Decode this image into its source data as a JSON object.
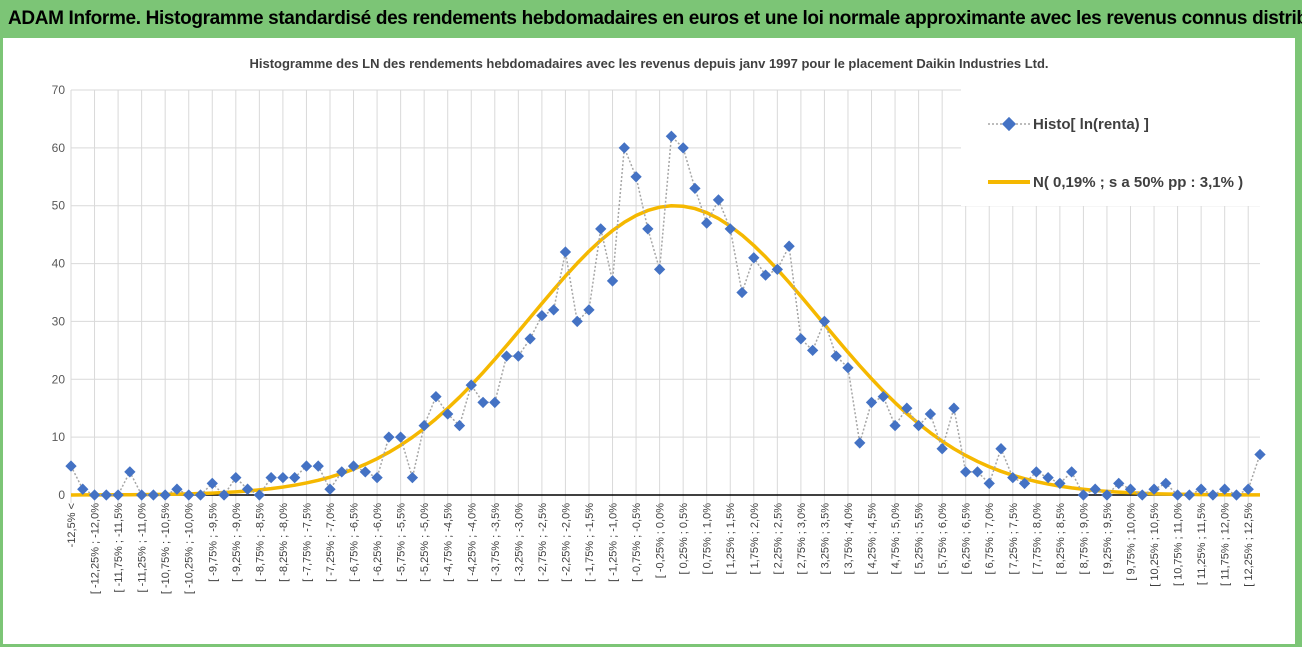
{
  "header": {
    "title": "ADAM Informe. Histogramme standardisé des rendements hebdomadaires en euros et une loi normale approximante avec les revenus connus distribués"
  },
  "colors": {
    "background": "#7cc576",
    "series_histo": "#4472c4",
    "series_normal": "#f5b800",
    "grid": "#d9d9d9",
    "connector": "#a6a6a6"
  },
  "chart_data": {
    "type": "line",
    "title": "Histogramme des LN des rendements hebdomadaires avec les revenus depuis janv 1997 pour le placement Daikin Industries Ltd.",
    "xlabel": "",
    "ylabel": "",
    "ylim": [
      0,
      70
    ],
    "yticks": [
      0,
      10,
      20,
      30,
      40,
      50,
      60,
      70
    ],
    "legend_position": "top-right",
    "categories": [
      "-12,5% <",
      "[ -12,5% ; -12,25% [",
      "[ -12,25% ; -12,0% [",
      "[ -12,0% ; -11,75% [",
      "[ -11,75% ; -11,5% [",
      "[ -11,5% ; -11,25% [",
      "[ -11,25% ; -11,0% [",
      "[ -11,0% ; -10,75% [",
      "[ -10,75% ; -10,5% [",
      "[ -10,5% ; -10,25% [",
      "[ -10,25% ; -10,0% [",
      "[ -10,0% ; -9,75% [",
      "[ -9,75% ; -9,5% [",
      "[ -9,5% ; -9,25% [",
      "[ -9,25% ; -9,0% [",
      "[ -9,0% ; -8,75% [",
      "[ -8,75% ; -8,5% [",
      "[ -8,5% ; -8,25% [",
      "[ -8,25% ; -8,0% [",
      "[ -8,0% ; -7,75% [",
      "[ -7,75% ; -7,5% [",
      "[ -7,5% ; -7,25% [",
      "[ -7,25% ; -7,0% [",
      "[ -7,0% ; -6,75% [",
      "[ -6,75% ; -6,5% [",
      "[ -6,5% ; -6,25% [",
      "[ -6,25% ; -6,0% [",
      "[ -6,0% ; -5,75% [",
      "[ -5,75% ; -5,5% [",
      "[ -5,5% ; -5,25% [",
      "[ -5,25% ; -5,0% [",
      "[ -5,0% ; -4,75% [",
      "[ -4,75% ; -4,5% [",
      "[ -4,5% ; -4,25% [",
      "[ -4,25% ; -4,0% [",
      "[ -4,0% ; -3,75% [",
      "[ -3,75% ; -3,5% [",
      "[ -3,5% ; -3,25% [",
      "[ -3,25% ; -3,0% [",
      "[ -3,0% ; -2,75% [",
      "[ -2,75% ; -2,5% [",
      "[ -2,5% ; -2,25% [",
      "[ -2,25% ; -2,0% [",
      "[ -2,0% ; -1,75% [",
      "[ -1,75% ; -1,5% [",
      "[ -1,5% ; -1,25% [",
      "[ -1,25% ; -1,0% [",
      "[ -1,0% ; -0,75% [",
      "[ -0,75% ; -0,5% [",
      "[ -0,5% ; -0,25% [",
      "[ -0,25% ; 0,0% [",
      "[ 0,0% ; 0,25% [",
      "[ 0,25% ; 0,5% [",
      "[ 0,5% ; 0,75% [",
      "[ 0,75% ; 1,0% [",
      "[ 1,0% ; 1,25% [",
      "[ 1,25% ; 1,5% [",
      "[ 1,5% ; 1,75% [",
      "[ 1,75% ; 2,0% [",
      "[ 2,0% ; 2,25% [",
      "[ 2,25% ; 2,5% [",
      "[ 2,5% ; 2,75% [",
      "[ 2,75% ; 3,0% [",
      "[ 3,0% ; 3,25% [",
      "[ 3,25% ; 3,5% [",
      "[ 3,5% ; 3,75% [",
      "[ 3,75% ; 4,0% [",
      "[ 4,0% ; 4,25% [",
      "[ 4,25% ; 4,5% [",
      "[ 4,5% ; 4,75% [",
      "[ 4,75% ; 5,0% [",
      "[ 5,0% ; 5,25% [",
      "[ 5,25% ; 5,5% [",
      "[ 5,5% ; 5,75% [",
      "[ 5,75% ; 6,0% [",
      "[ 6,0% ; 6,25% [",
      "[ 6,25% ; 6,5% [",
      "[ 6,5% ; 6,75% [",
      "[ 6,75% ; 7,0% [",
      "[ 7,0% ; 7,25% [",
      "[ 7,25% ; 7,5% [",
      "[ 7,5% ; 7,75% [",
      "[ 7,75% ; 8,0% [",
      "[ 8,0% ; 8,25% [",
      "[ 8,25% ; 8,5% [",
      "[ 8,5% ; 8,75% [",
      "[ 8,75% ; 9,0% [",
      "[ 9,0% ; 9,25% [",
      "[ 9,25% ; 9,5% [",
      "[ 9,5% ; 9,75% [",
      "[ 9,75% ; 10,0% [",
      "[ 10,0% ; 10,25% [",
      "[ 10,25% ; 10,5% [",
      "[ 10,5% ; 10,75% [",
      "[ 10,75% ; 11,0% [",
      "[ 11,0% ; 11,25% [",
      "[ 11,25% ; 11,5% [",
      "[ 11,5% ; 11,75% [",
      "[ 11,75% ; 12,0% [",
      "[ 12,0% ; 12,25% [",
      "[ 12,25% ; 12,5% [",
      "[ 12,5% ; 12,75% ["
    ],
    "shown_tick_labels": [
      "-12,5% <",
      "[ -12,25% ; -12,0%",
      "[ -11,75% ; -11,5%",
      "[ -11,25% ; -11,0%",
      "[ -10,75% ; -10,5%",
      "[ -10,25% ; -10,0%",
      "[ -9,75% ; -9,5%",
      "[ -9,25% ; -9,0%",
      "[ -8,75% ; -8,5%",
      "[ -8,25% ; -8,0%",
      "[ -7,75% ; -7,5%",
      "[ -7,25% ; -7,0%",
      "[ -6,75% ; -6,5%",
      "[ -6,25% ; -6,0%",
      "[ -5,75% ; -5,5%",
      "[ -5,25% ; -5,0%",
      "[ -4,75% ; -4,5%",
      "[ -4,25% ; -4,0%",
      "[ -3,75% ; -3,5%",
      "[ -3,25% ; -3,0%",
      "[ -2,75% ; -2,5%",
      "[ -2,25% ; -2,0%",
      "[ -1,75% ; -1,5%",
      "[ -1,25% ; -1,0%",
      "[ -0,75% ; -0,5%",
      "[ -0,25% ; 0,0%",
      "[ 0,25% ; 0,5%",
      "[ 0,75% ; 1,0%",
      "[ 1,25% ; 1,5%",
      "[ 1,75% ; 2,0%",
      "[ 2,25% ; 2,5%",
      "[ 2,75% ; 3,0%",
      "[ 3,25% ; 3,5%",
      "[ 3,75% ; 4,0%",
      "[ 4,25% ; 4,5%",
      "[ 4,75% ; 5,0%",
      "[ 5,25% ; 5,5%",
      "[ 5,75% ; 6,0%",
      "[ 6,25% ; 6,5%",
      "[ 6,75% ; 7,0%",
      "[ 7,25% ; 7,5%",
      "[ 7,75% ; 8,0%",
      "[ 8,25% ; 8,5%",
      "[ 8,75% ; 9,0%",
      "[ 9,25% ; 9,5%",
      "[ 9,75% ; 10,0%",
      "[ 10,25% ; 10,5%",
      "[ 10,75% ; 11,0%",
      "[ 11,25% ; 11,5%",
      "[ 11,75% ; 12,0%",
      "[ 12,25% ; 12,5%"
    ],
    "series": [
      {
        "name": "Histo[ ln(renta) ]",
        "style": "markers-dotted",
        "values": [
          5,
          1,
          0,
          0,
          0,
          4,
          0,
          0,
          0,
          1,
          0,
          0,
          2,
          0,
          3,
          1,
          0,
          3,
          3,
          3,
          5,
          5,
          1,
          4,
          5,
          4,
          3,
          10,
          10,
          3,
          12,
          17,
          14,
          12,
          19,
          16,
          16,
          24,
          24,
          27,
          31,
          32,
          42,
          30,
          32,
          46,
          37,
          60,
          55,
          46,
          39,
          62,
          60,
          53,
          47,
          51,
          46,
          35,
          41,
          38,
          39,
          43,
          27,
          25,
          30,
          24,
          22,
          9,
          16,
          17,
          12,
          15,
          12,
          14,
          8,
          15,
          4,
          4,
          2,
          8,
          3,
          2,
          4,
          3,
          2,
          4,
          0,
          1,
          0,
          2,
          1,
          0,
          1,
          2,
          0,
          0,
          1,
          0,
          1,
          0,
          1,
          7
        ]
      },
      {
        "name": "N( 0,19% ; s a 50% pp : 3,1% )",
        "style": "line",
        "mean_percent": 0.19,
        "sd_percent": 3.1,
        "peak": 50,
        "bin_width_percent": 0.25
      }
    ]
  }
}
